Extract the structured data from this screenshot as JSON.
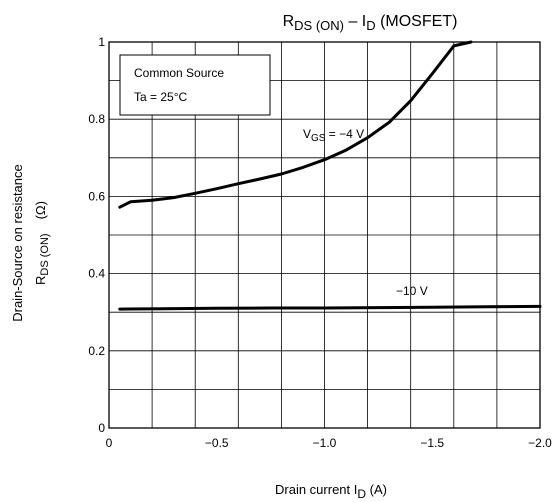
{
  "chart_data": {
    "type": "line",
    "title": {
      "main1": "R",
      "sub1": "DS (ON)",
      "mid": " – I",
      "sub2": "D",
      "tail": " (MOSFET)"
    },
    "xlabel": {
      "pre": "Drain current   I",
      "sub": "D",
      "post": "   (A)"
    },
    "ylabel": {
      "line1": "Drain-Source on resistance",
      "main": "R",
      "sub": "DS (ON)",
      "unit": "(Ω)"
    },
    "xlim": [
      0,
      -2.0
    ],
    "ylim": [
      0,
      1
    ],
    "x_ticks": [
      0,
      -0.5,
      -1.0,
      -1.5,
      -2.0
    ],
    "x_tick_labels": [
      "0",
      "−0.5",
      "−1.0",
      "−1.5",
      "−2.0"
    ],
    "y_ticks": [
      0,
      0.2,
      0.4,
      0.6,
      0.8,
      1
    ],
    "y_tick_labels": [
      "0",
      "0.2",
      "0.4",
      "0.6",
      "0.8",
      "1"
    ],
    "grid": true,
    "conditions_box": {
      "line1": "Common Source",
      "line2": "Ta = 25°C"
    },
    "series": [
      {
        "name": "VGS = −4 V",
        "label": {
          "pre": "V",
          "sub": "GS",
          "post": " = −4 V"
        },
        "x": [
          -0.05,
          -0.1,
          -0.2,
          -0.3,
          -0.4,
          -0.5,
          -0.6,
          -0.7,
          -0.8,
          -0.9,
          -1.0,
          -1.1,
          -1.2,
          -1.3,
          -1.4,
          -1.5,
          -1.6,
          -1.68
        ],
        "values": [
          0.572,
          0.586,
          0.59,
          0.597,
          0.608,
          0.62,
          0.633,
          0.645,
          0.658,
          0.675,
          0.695,
          0.72,
          0.752,
          0.792,
          0.848,
          0.918,
          0.99,
          1.0
        ]
      },
      {
        "name": "−10 V",
        "label": {
          "pre": "−10 V",
          "sub": "",
          "post": ""
        },
        "x": [
          -0.05,
          -0.25,
          -0.5,
          -0.75,
          -1.0,
          -1.25,
          -1.5,
          -1.75,
          -2.0
        ],
        "values": [
          0.308,
          0.309,
          0.31,
          0.311,
          0.311,
          0.312,
          0.313,
          0.314,
          0.315
        ]
      }
    ]
  }
}
